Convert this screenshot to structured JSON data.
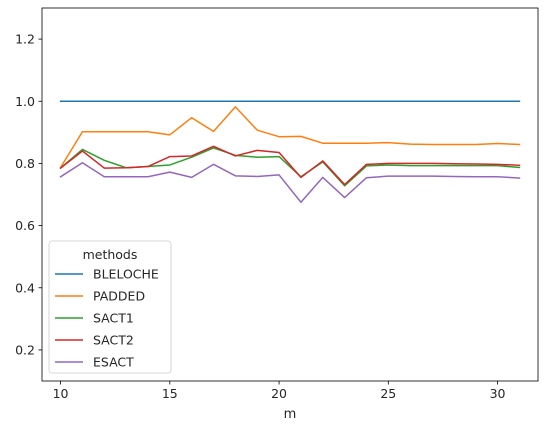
{
  "chart_data": {
    "type": "line",
    "xlabel": "m",
    "ylabel": "",
    "title": "",
    "xlim": [
      9.15,
      31.85
    ],
    "ylim": [
      0.1,
      1.3
    ],
    "xticks": [
      10,
      15,
      20,
      25,
      30
    ],
    "yticks": [
      0.2,
      0.4,
      0.6,
      0.8,
      1.0,
      1.2
    ],
    "ytick_labels": [
      "0.2",
      "0.4",
      "0.6",
      "0.8",
      "1.0",
      "1.2"
    ],
    "legend_title": "methods",
    "legend_position": "lower-left",
    "grid": false,
    "x": [
      10,
      11,
      12,
      13,
      14,
      15,
      16,
      17,
      18,
      19,
      20,
      21,
      22,
      23,
      24,
      25,
      26,
      27,
      28,
      29,
      30,
      31
    ],
    "series": [
      {
        "name": "BLELOCHE",
        "color": "#1f77b4",
        "values": [
          1.0,
          1.0,
          1.0,
          1.0,
          1.0,
          1.0,
          1.0,
          1.0,
          1.0,
          1.0,
          1.0,
          1.0,
          1.0,
          1.0,
          1.0,
          1.0,
          1.0,
          1.0,
          1.0,
          1.0,
          1.0,
          1.0
        ]
      },
      {
        "name": "PADDED",
        "color": "#ff7f0e",
        "values": [
          0.787,
          0.902,
          0.902,
          0.902,
          0.902,
          0.892,
          0.947,
          0.903,
          0.982,
          0.907,
          0.886,
          0.887,
          0.865,
          0.865,
          0.865,
          0.867,
          0.862,
          0.861,
          0.861,
          0.861,
          0.864,
          0.861
        ]
      },
      {
        "name": "SACT1",
        "color": "#2ca02c",
        "values": [
          0.785,
          0.845,
          0.81,
          0.786,
          0.79,
          0.795,
          0.82,
          0.85,
          0.826,
          0.82,
          0.822,
          0.757,
          0.805,
          0.728,
          0.792,
          0.795,
          0.793,
          0.793,
          0.793,
          0.793,
          0.793,
          0.787
        ]
      },
      {
        "name": "SACT2",
        "color": "#d62728",
        "values": [
          0.785,
          0.84,
          0.785,
          0.786,
          0.79,
          0.822,
          0.824,
          0.855,
          0.824,
          0.842,
          0.835,
          0.755,
          0.808,
          0.732,
          0.797,
          0.8,
          0.8,
          0.8,
          0.799,
          0.798,
          0.797,
          0.794
        ]
      },
      {
        "name": "ESACT",
        "color": "#9467bd",
        "values": [
          0.757,
          0.802,
          0.757,
          0.757,
          0.757,
          0.772,
          0.755,
          0.797,
          0.76,
          0.758,
          0.763,
          0.675,
          0.755,
          0.69,
          0.754,
          0.759,
          0.759,
          0.759,
          0.758,
          0.757,
          0.757,
          0.753
        ]
      }
    ]
  }
}
